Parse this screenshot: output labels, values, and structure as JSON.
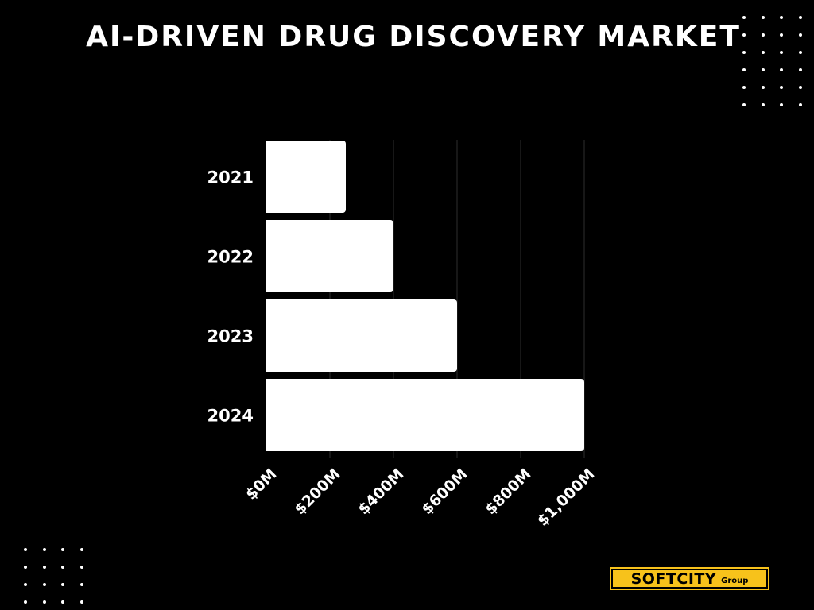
{
  "header": {
    "title": "AI-DRIVEN DRUG DISCOVERY MARKET"
  },
  "chart_data": {
    "type": "bar",
    "orientation": "horizontal",
    "title": "AI-DRIVEN DRUG DISCOVERY MARKET",
    "categories": [
      "2021",
      "2022",
      "2023",
      "2024"
    ],
    "values": [
      125,
      200,
      300,
      500
    ],
    "xlabel": "",
    "ylabel": "",
    "xlim": [
      0,
      500
    ],
    "ticks": [
      0,
      100,
      200,
      300,
      400,
      500
    ],
    "tick_labels": [
      "$0M",
      "$200M",
      "$400M",
      "$600M",
      "$800M",
      "$1,000M"
    ],
    "grid": true,
    "legend": "none"
  },
  "colors": {
    "background": "#000000",
    "bar": "#ffffff",
    "grid": "#2e2e2e",
    "logo_bg": "#F7C21B",
    "text": "#ffffff"
  },
  "logo": {
    "main": "SOFTCITY",
    "sub": "Group"
  }
}
